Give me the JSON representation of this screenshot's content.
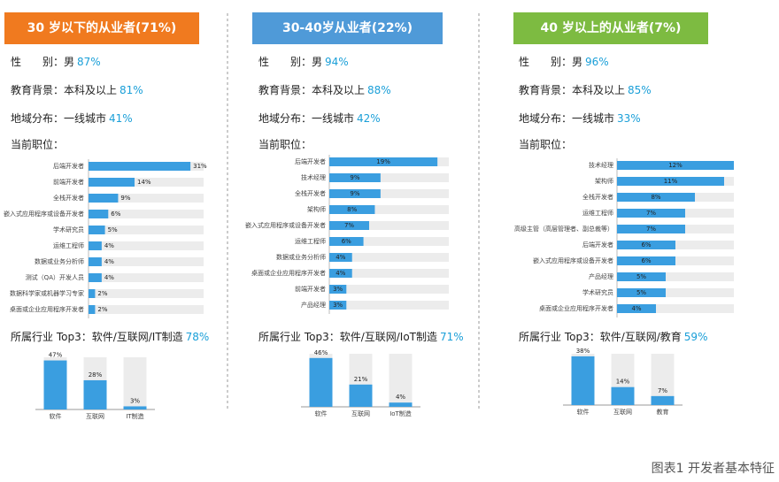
{
  "panels": [
    {
      "header": "30 岁以下的从业者(71%)",
      "stats": [
        {
          "label": "性　　别：男",
          "value": "87%"
        },
        {
          "label": "教育背景：本科及以上",
          "value": "81%"
        },
        {
          "label": "地域分布：一线城市",
          "value": "41%"
        }
      ],
      "position_title": "当前职位：",
      "industry": {
        "label": "所属行业 Top3：软件/互联网/IT制造",
        "value": "78%"
      }
    },
    {
      "header": "30-40岁从业者(22%)",
      "stats": [
        {
          "label": "性　　别：男",
          "value": "94%"
        },
        {
          "label": "教育背景：本科及以上",
          "value": "88%"
        },
        {
          "label": "地域分布：一线城市",
          "value": "42%"
        }
      ],
      "position_title": "当前职位：",
      "industry": {
        "label": "所属行业 Top3：软件/互联网/IoT制造",
        "value": "71%"
      }
    },
    {
      "header": "40 岁以上的从业者(7%)",
      "stats": [
        {
          "label": "性　　别：男",
          "value": "96%"
        },
        {
          "label": "教育背景：本科及以上",
          "value": "85%"
        },
        {
          "label": "地域分布：一线城市",
          "value": "33%"
        }
      ],
      "position_title": "当前职位：",
      "industry": {
        "label": "所属行业 Top3：软件/互联网/教育",
        "value": "59%"
      }
    }
  ],
  "caption": "图表1 开发者基本特征",
  "chart_data": [
    {
      "type": "hbar",
      "color": "#3a9ee0",
      "value_label_position": "outside",
      "xlim": [
        0,
        35
      ],
      "categories": [
        "后端开发者",
        "前端开发者",
        "全栈开发者",
        "嵌入式应用程序或设备开发者",
        "学术研究员",
        "运维工程师",
        "数据或业务分析师",
        "测试（QA）开发人员",
        "数据科学家或机器学习专家",
        "桌面或企业应用程序开发者"
      ],
      "values": [
        31,
        14,
        9,
        6,
        5,
        4,
        4,
        4,
        2,
        2
      ],
      "value_labels": [
        "31%",
        "14%",
        "9%",
        "6%",
        "5%",
        "4%",
        "4%",
        "4%",
        "2%",
        "2%"
      ]
    },
    {
      "type": "bar",
      "color": "#3a9ee0",
      "ylim": [
        0,
        50
      ],
      "categories": [
        "软件",
        "互联网",
        "IT制造"
      ],
      "values": [
        47,
        28,
        3
      ],
      "value_labels": [
        "47%",
        "28%",
        "3%"
      ]
    },
    {
      "type": "hbar",
      "color": "#3a9ee0",
      "value_label_position": "inside",
      "xlim": [
        0,
        21
      ],
      "categories": [
        "后端开发者",
        "技术经理",
        "全栈开发者",
        "架构师",
        "嵌入式应用程序或设备开发者",
        "运维工程师",
        "数据或业务分析师",
        "桌面或企业应用程序开发者",
        "前端开发者",
        "产品经理"
      ],
      "values": [
        19,
        9,
        9,
        8,
        7,
        6,
        4,
        4,
        3,
        3
      ],
      "value_labels": [
        "19%",
        "9%",
        "9%",
        "8%",
        "7%",
        "6%",
        "4%",
        "4%",
        "3%",
        "3%"
      ]
    },
    {
      "type": "bar",
      "color": "#3a9ee0",
      "ylim": [
        0,
        50
      ],
      "categories": [
        "软件",
        "互联网",
        "IoT制造"
      ],
      "values": [
        46,
        21,
        4
      ],
      "value_labels": [
        "46%",
        "21%",
        "4%"
      ]
    },
    {
      "type": "hbar",
      "color": "#3a9ee0",
      "value_label_position": "inside",
      "xlim": [
        0,
        12
      ],
      "categories": [
        "技术经理",
        "架构师",
        "全栈开发者",
        "运维工程师",
        "高级主管（高层管理者、副总裁等）",
        "后端开发者",
        "嵌入式应用程序或设备开发者",
        "产品经理",
        "学术研究员",
        "桌面或企业应用程序开发者"
      ],
      "values": [
        12,
        11,
        8,
        7,
        7,
        6,
        6,
        5,
        5,
        4
      ],
      "value_labels": [
        "12%",
        "11%",
        "8%",
        "7%",
        "7%",
        "6%",
        "6%",
        "5%",
        "5%",
        "4%"
      ]
    },
    {
      "type": "bar",
      "color": "#3a9ee0",
      "ylim": [
        0,
        40
      ],
      "categories": [
        "软件",
        "互联网",
        "教育"
      ],
      "values": [
        38,
        14,
        7
      ],
      "value_labels": [
        "38%",
        "14%",
        "7%"
      ]
    }
  ]
}
